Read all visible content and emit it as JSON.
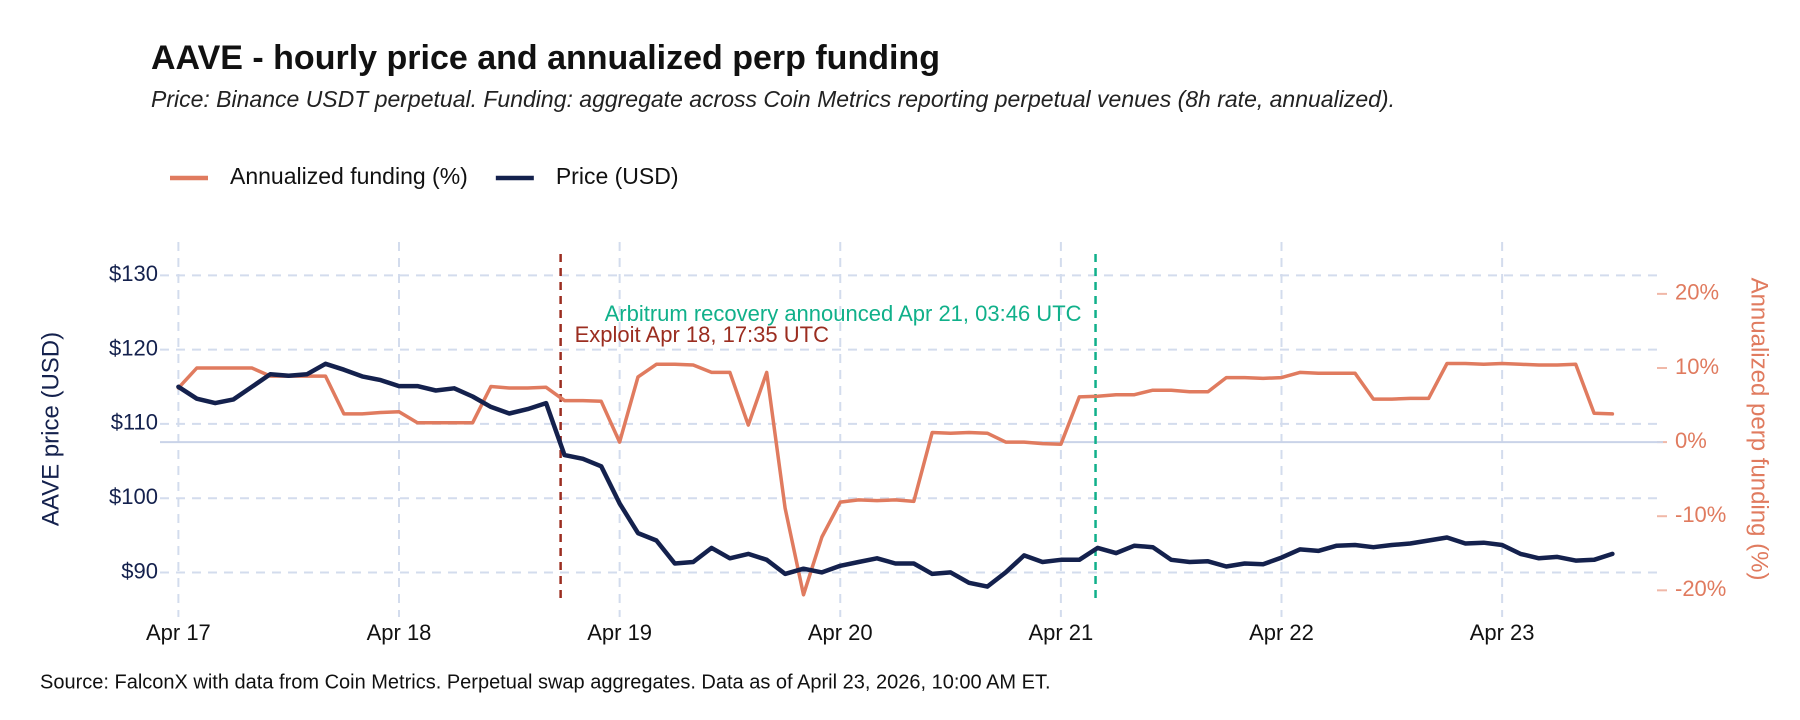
{
  "chart_data": {
    "type": "line",
    "title": "AAVE - hourly price and annualized perp funding",
    "subtitle": "Price: Binance USDT perpetual. Funding: aggregate across Coin Metrics reporting perpetual venues (8h rate, annualized).",
    "caption": "Source: FalconX with data from Coin Metrics. Perpetual swap aggregates. Data as of April 23, 2026, 10:00 AM ET.",
    "y_label": "AAVE price (USD)",
    "y2_label": "Annualized perp funding (%)",
    "x": [
      0,
      2,
      4,
      6,
      8,
      10,
      12,
      14,
      16,
      18,
      20,
      22,
      24,
      26,
      28,
      30,
      32,
      34,
      36,
      38,
      40,
      42,
      44,
      46,
      48,
      50,
      52,
      54,
      56,
      58,
      60,
      62,
      64,
      66,
      68,
      70,
      72,
      74,
      76,
      78,
      80,
      82,
      84,
      86,
      88,
      90,
      92,
      94,
      96,
      98,
      100,
      102,
      104,
      106,
      108,
      110,
      112,
      114,
      116,
      118,
      120,
      122,
      124,
      126,
      128,
      130,
      132,
      134,
      136,
      138,
      140,
      142,
      144,
      146,
      148,
      150,
      152,
      154,
      156
    ],
    "xlim": [
      -2,
      161.5
    ],
    "xticks": [
      {
        "value": 0,
        "label": "Apr 17"
      },
      {
        "value": 24,
        "label": "Apr 18"
      },
      {
        "value": 48,
        "label": "Apr 19"
      },
      {
        "value": 72,
        "label": "Apr 20"
      },
      {
        "value": 96,
        "label": "Apr 21"
      },
      {
        "value": 120,
        "label": "Apr 22"
      },
      {
        "value": 144,
        "label": "Apr 23"
      }
    ],
    "ylim": [
      84,
      134.5
    ],
    "yticks": [
      {
        "value": 90,
        "label": "$90"
      },
      {
        "value": 100,
        "label": "$100"
      },
      {
        "value": 110,
        "label": "$110"
      },
      {
        "value": 120,
        "label": "$120"
      },
      {
        "value": 130,
        "label": "$130"
      }
    ],
    "y2lim": [
      -23.6,
      27
    ],
    "y2ticks": [
      {
        "value": -20,
        "label": "-20%"
      },
      {
        "value": -10,
        "label": "-10%"
      },
      {
        "value": 0,
        "label": "0%"
      },
      {
        "value": 10,
        "label": "10%"
      },
      {
        "value": 20,
        "label": "20%"
      }
    ],
    "grid": true,
    "y2_zero_line": true,
    "legend": "top",
    "series": [
      {
        "name": "Annualized funding (%)",
        "color": "#e07b5f",
        "axis": "y2",
        "values": [
          7.3,
          10.0,
          10.0,
          10.0,
          10.0,
          8.9,
          8.9,
          8.9,
          8.9,
          3.8,
          3.8,
          4.0,
          4.1,
          2.6,
          2.6,
          2.6,
          2.6,
          7.5,
          7.3,
          7.3,
          7.4,
          5.6,
          5.6,
          5.5,
          0.0,
          8.8,
          10.5,
          10.5,
          10.4,
          9.4,
          9.4,
          2.3,
          9.4,
          -8.9,
          -20.6,
          -12.8,
          -8.1,
          -7.8,
          -7.9,
          -7.8,
          -8.0,
          1.3,
          1.2,
          1.3,
          1.2,
          0.0,
          0.0,
          -0.2,
          -0.3,
          6.1,
          6.2,
          6.4,
          6.4,
          7.0,
          7.0,
          6.8,
          6.8,
          8.7,
          8.7,
          8.6,
          8.7,
          9.4,
          9.3,
          9.3,
          9.3,
          5.8,
          5.8,
          5.9,
          5.9,
          10.6,
          10.6,
          10.5,
          10.6,
          10.5,
          10.4,
          10.4,
          10.5,
          3.9,
          3.8
        ]
      },
      {
        "name": "Price (USD)",
        "color": "#14214d",
        "values": [
          115.0,
          113.4,
          112.8,
          113.3,
          115.0,
          116.7,
          116.5,
          116.7,
          118.1,
          117.3,
          116.4,
          115.9,
          115.1,
          115.1,
          114.5,
          114.8,
          113.7,
          112.3,
          111.4,
          112.0,
          112.8,
          105.8,
          105.3,
          104.3,
          99.3,
          95.3,
          94.3,
          91.2,
          91.4,
          93.3,
          91.9,
          92.5,
          91.7,
          89.8,
          90.5,
          90.0,
          90.9,
          91.4,
          91.9,
          91.2,
          91.2,
          89.8,
          90.0,
          88.6,
          88.1,
          90.0,
          92.3,
          91.4,
          91.7,
          91.7,
          93.3,
          92.6,
          93.6,
          93.4,
          91.7,
          91.4,
          91.5,
          90.8,
          91.2,
          91.1,
          92.0,
          93.1,
          92.9,
          93.6,
          93.7,
          93.4,
          93.7,
          93.9,
          94.3,
          94.7,
          93.9,
          94.0,
          93.7,
          92.5,
          91.9,
          92.1,
          91.6,
          91.7,
          92.5
        ]
      }
    ],
    "annotations": [
      {
        "text": "Exploit  Apr 18, 17:35 UTC",
        "x": 41.58,
        "color": "#9b2d20",
        "side": "right"
      },
      {
        "text": "Arbitrum recovery announced  Apr 21, 03:46 UTC",
        "x": 99.77,
        "color": "#10b08a",
        "side": "left"
      }
    ]
  }
}
